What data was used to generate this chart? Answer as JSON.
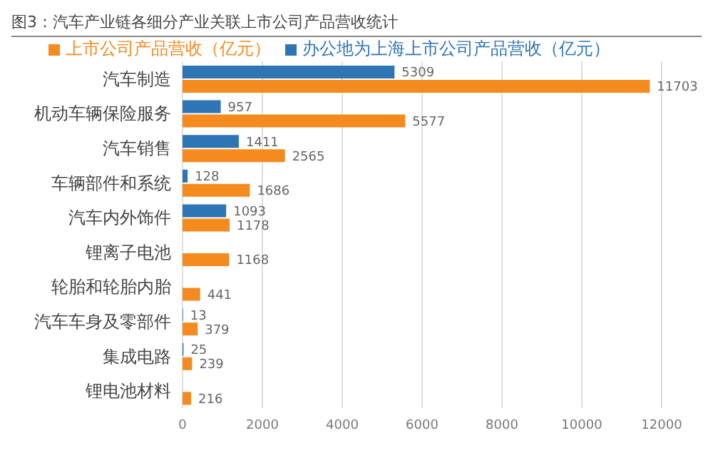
{
  "chart_data": {
    "type": "bar",
    "orientation": "horizontal",
    "title": "图3：汽车产业链各细分产业关联上市公司产品营收统计",
    "categories": [
      "汽车制造",
      "机动车辆保险服务",
      "汽车销售",
      "车辆部件和系统",
      "汽车内外饰件",
      "锂离子电池",
      "轮胎和轮胎内胎",
      "汽车车身及零部件",
      "集成电路",
      "锂电池材料"
    ],
    "series": [
      {
        "name": "办公地为上海上市公司产品营收（亿元）",
        "color": "#2e75b6",
        "values": [
          5309,
          957,
          1411,
          128,
          1093,
          null,
          null,
          13,
          25,
          null
        ]
      },
      {
        "name": "上市公司产品营收（亿元）",
        "color": "#f58a1f",
        "values": [
          11703,
          5577,
          2565,
          1686,
          1178,
          1168,
          441,
          379,
          239,
          216
        ]
      }
    ],
    "xlim": [
      0,
      12000
    ],
    "xticks": [
      0,
      2000,
      4000,
      6000,
      8000,
      10000,
      12000
    ],
    "grid": "x",
    "legend": "top",
    "data_labels": true
  }
}
